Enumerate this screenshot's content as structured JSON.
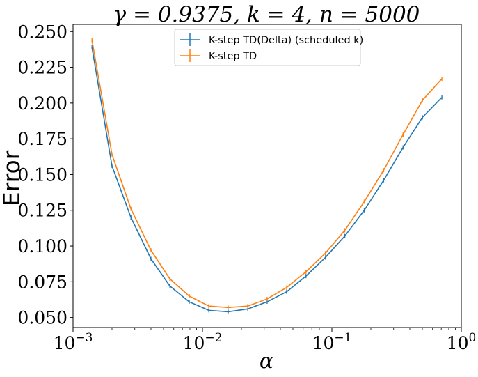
{
  "chart_data": {
    "type": "line",
    "title": "γ = 0.9375, k = 4, n = 5000",
    "xlabel": "α",
    "ylabel": "Error",
    "xscale": "log",
    "xlim": [
      0.001,
      1
    ],
    "ylim": [
      0.043,
      0.255
    ],
    "x_ticks": [
      {
        "value": 0.001,
        "base": "10",
        "exp": "−3"
      },
      {
        "value": 0.01,
        "base": "10",
        "exp": "−2"
      },
      {
        "value": 0.1,
        "base": "10",
        "exp": "−1"
      },
      {
        "value": 1,
        "base": "10",
        "exp": "0"
      }
    ],
    "y_ticks": [
      {
        "value": 0.05,
        "label": "0.050"
      },
      {
        "value": 0.075,
        "label": "0.075"
      },
      {
        "value": 0.1,
        "label": "0.100"
      },
      {
        "value": 0.125,
        "label": "0.125"
      },
      {
        "value": 0.15,
        "label": "0.150"
      },
      {
        "value": 0.175,
        "label": "0.175"
      },
      {
        "value": 0.2,
        "label": "0.200"
      },
      {
        "value": 0.225,
        "label": "0.225"
      },
      {
        "value": 0.25,
        "label": "0.250"
      }
    ],
    "legend_position": "upper-center",
    "grid": false,
    "x": [
      0.0014,
      0.002,
      0.0028,
      0.004,
      0.0056,
      0.0079,
      0.0112,
      0.0158,
      0.0224,
      0.0316,
      0.0447,
      0.0631,
      0.0891,
      0.1259,
      0.1778,
      0.2512,
      0.3548,
      0.5012,
      0.7079
    ],
    "series": [
      {
        "name": "K-step TD(Delta) (scheduled k)",
        "color": "#1f77b4",
        "values": [
          0.239,
          0.156,
          0.12,
          0.091,
          0.072,
          0.061,
          0.055,
          0.054,
          0.056,
          0.061,
          0.068,
          0.079,
          0.092,
          0.107,
          0.125,
          0.146,
          0.169,
          0.19,
          0.204
        ]
      },
      {
        "name": "K-step TD",
        "color": "#ff7f0e",
        "values": [
          0.244,
          0.164,
          0.126,
          0.097,
          0.077,
          0.065,
          0.058,
          0.057,
          0.058,
          0.063,
          0.071,
          0.082,
          0.095,
          0.111,
          0.131,
          0.153,
          0.178,
          0.202,
          0.217
        ]
      }
    ]
  }
}
